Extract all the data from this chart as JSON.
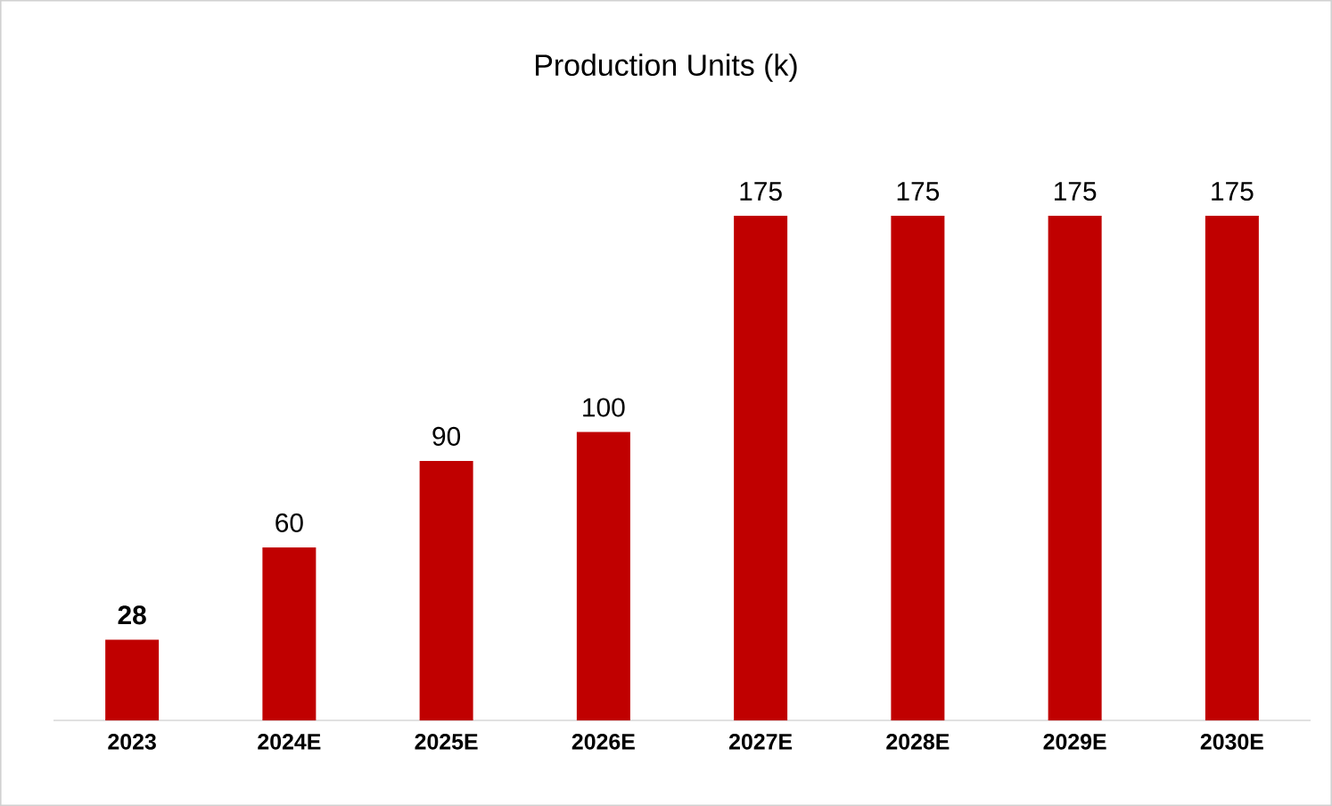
{
  "chart_data": {
    "type": "bar",
    "title": "Production Units (k)",
    "categories": [
      "2023",
      "2024E",
      "2025E",
      "2026E",
      "2027E",
      "2028E",
      "2029E",
      "2030E"
    ],
    "values": [
      28,
      60,
      90,
      100,
      175,
      175,
      175,
      175
    ],
    "value_labels": [
      "**28**",
      "60",
      "90",
      "100",
      "175",
      "175",
      "175",
      "175"
    ],
    "color": "#c00000"
  }
}
